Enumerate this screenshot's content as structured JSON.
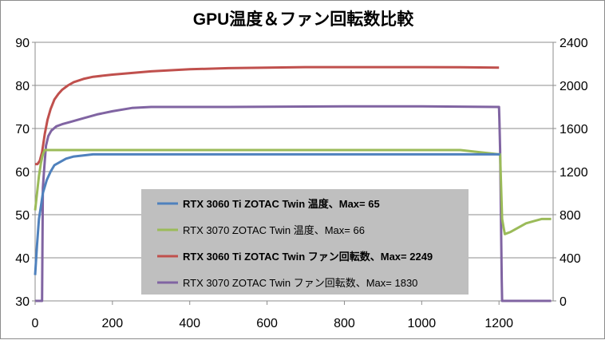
{
  "chart_data": {
    "type": "line",
    "title": "GPU温度＆ファン回転数比較",
    "xlabel": "",
    "ylabel_left": "",
    "ylabel_right": "",
    "xlim": [
      0,
      1340
    ],
    "ylim_left": [
      30,
      90
    ],
    "ylim_right": [
      0,
      2400
    ],
    "x_ticks": [
      "0",
      "200",
      "400",
      "600",
      "800",
      "1000",
      "1200"
    ],
    "y_left_ticks": [
      "30",
      "40",
      "50",
      "60",
      "70",
      "80",
      "90"
    ],
    "y_right_ticks": [
      "0",
      "400",
      "800",
      "1200",
      "1600",
      "2000",
      "2400"
    ],
    "grid": "horizontal",
    "legend_position": "center",
    "series": [
      {
        "name": "RTX 3060 Ti ZOTAC Twin 温度、Max= 65",
        "axis": "left",
        "color": "#4f81bd",
        "bold": true,
        "points": [
          [
            0,
            36
          ],
          [
            5,
            43
          ],
          [
            10,
            49
          ],
          [
            15,
            52
          ],
          [
            20,
            55
          ],
          [
            25,
            56.5
          ],
          [
            30,
            58
          ],
          [
            40,
            60
          ],
          [
            50,
            61.5
          ],
          [
            60,
            62
          ],
          [
            80,
            63
          ],
          [
            100,
            63.5
          ],
          [
            150,
            64
          ],
          [
            200,
            64
          ],
          [
            300,
            64
          ],
          [
            400,
            64
          ],
          [
            600,
            64
          ],
          [
            800,
            64
          ],
          [
            1000,
            64
          ],
          [
            1100,
            64
          ],
          [
            1200,
            64
          ],
          [
            1203,
            64
          ]
        ]
      },
      {
        "name": "RTX 3070 ZOTAC Twin 温度、Max= 66",
        "axis": "left",
        "color": "#9bbb59",
        "bold": false,
        "points": [
          [
            0,
            51
          ],
          [
            5,
            55
          ],
          [
            10,
            59
          ],
          [
            15,
            62
          ],
          [
            20,
            64
          ],
          [
            25,
            65
          ],
          [
            35,
            65
          ],
          [
            100,
            65
          ],
          [
            200,
            65
          ],
          [
            400,
            65
          ],
          [
            600,
            65
          ],
          [
            800,
            65
          ],
          [
            1000,
            65
          ],
          [
            1100,
            65
          ],
          [
            1200,
            64
          ],
          [
            1203,
            64
          ],
          [
            1208,
            49
          ],
          [
            1212,
            47
          ],
          [
            1215,
            45.5
          ],
          [
            1230,
            46
          ],
          [
            1250,
            47
          ],
          [
            1270,
            48
          ],
          [
            1290,
            48.5
          ],
          [
            1310,
            49
          ],
          [
            1335,
            49
          ]
        ]
      },
      {
        "name": "RTX 3060 Ti ZOTAC Twin ファン回転数、Max= 2249",
        "axis": "right",
        "color": "#c0504d",
        "bold": true,
        "points": [
          [
            0,
            1270
          ],
          [
            6,
            1270
          ],
          [
            12,
            1300
          ],
          [
            18,
            1380
          ],
          [
            25,
            1550
          ],
          [
            32,
            1680
          ],
          [
            40,
            1780
          ],
          [
            50,
            1870
          ],
          [
            60,
            1920
          ],
          [
            70,
            1960
          ],
          [
            85,
            2000
          ],
          [
            100,
            2030
          ],
          [
            125,
            2060
          ],
          [
            150,
            2080
          ],
          [
            200,
            2100
          ],
          [
            300,
            2130
          ],
          [
            400,
            2150
          ],
          [
            500,
            2160
          ],
          [
            600,
            2165
          ],
          [
            700,
            2170
          ],
          [
            800,
            2170
          ],
          [
            900,
            2170
          ],
          [
            1000,
            2170
          ],
          [
            1100,
            2168
          ],
          [
            1200,
            2165
          ]
        ]
      },
      {
        "name": "RTX 3070 ZOTAC Twin ファン回転数、Max= 1830",
        "axis": "right",
        "color": "#8064a2",
        "bold": false,
        "points": [
          [
            0,
            0
          ],
          [
            18,
            0
          ],
          [
            20,
            1050
          ],
          [
            24,
            1250
          ],
          [
            28,
            1440
          ],
          [
            34,
            1530
          ],
          [
            42,
            1580
          ],
          [
            55,
            1620
          ],
          [
            70,
            1640
          ],
          [
            90,
            1660
          ],
          [
            120,
            1690
          ],
          [
            160,
            1730
          ],
          [
            200,
            1760
          ],
          [
            250,
            1790
          ],
          [
            300,
            1800
          ],
          [
            500,
            1800
          ],
          [
            800,
            1805
          ],
          [
            1000,
            1805
          ],
          [
            1195,
            1800
          ],
          [
            1200,
            1800
          ],
          [
            1201,
            1680
          ],
          [
            1203,
            1400
          ],
          [
            1205,
            800
          ],
          [
            1207,
            200
          ],
          [
            1208,
            0
          ],
          [
            1335,
            0
          ]
        ]
      }
    ]
  }
}
